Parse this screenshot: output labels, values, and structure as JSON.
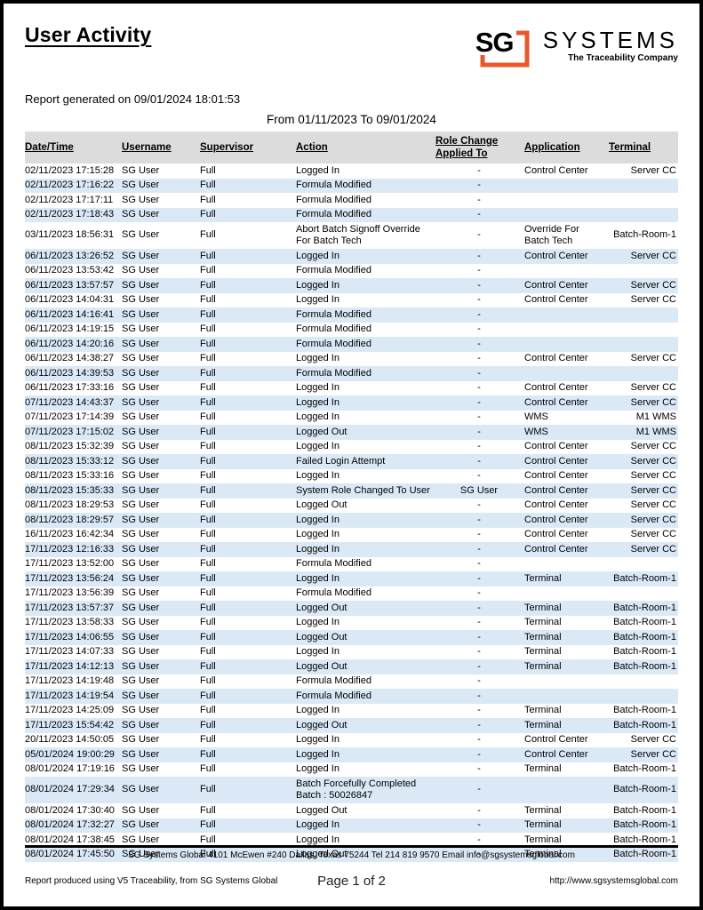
{
  "report": {
    "title": "User Activity",
    "generated_line": "Report generated on 09/01/2024 18:01:53",
    "date_range_line": "From 01/11/2023 To 09/01/2024",
    "page_indicator": "Page 1 of 2"
  },
  "logo": {
    "monogram": "SG",
    "name": "SYSTEMS",
    "tagline": "The Traceability Company",
    "accent_color": "#E9582B"
  },
  "colors": {
    "row_alt": "#dbe9f7",
    "header_bg": "#dcdcdc",
    "page_border": "#000000"
  },
  "table": {
    "headers": [
      "Date/Time",
      "Username",
      "Supervisor",
      "Action",
      "Role Change\nApplied To",
      "Application",
      "Terminal"
    ],
    "col_keys": [
      "datetime",
      "username",
      "supervisor",
      "action",
      "role-change-applied-to",
      "application",
      "terminal"
    ],
    "rows": [
      [
        "02/11/2023 17:15:28",
        "SG User",
        "Full",
        "Logged In",
        "-",
        "Control Center",
        "Server CC"
      ],
      [
        "02/11/2023 17:16:22",
        "SG User",
        "Full",
        "Formula Modified",
        "-",
        "",
        ""
      ],
      [
        "02/11/2023 17:17:11",
        "SG User",
        "Full",
        "Formula Modified",
        "-",
        "",
        ""
      ],
      [
        "02/11/2023 17:18:43",
        "SG User",
        "Full",
        "Formula Modified",
        "-",
        "",
        ""
      ],
      [
        "03/11/2023 18:56:31",
        "SG User",
        "Full",
        "Abort Batch Signoff Override\nFor Batch Tech",
        "-",
        "Override For\nBatch Tech",
        "Batch-Room-1"
      ],
      [
        "06/11/2023 13:26:52",
        "SG User",
        "Full",
        "Logged In",
        "-",
        "Control Center",
        "Server CC"
      ],
      [
        "06/11/2023 13:53:42",
        "SG User",
        "Full",
        "Formula Modified",
        "-",
        "",
        ""
      ],
      [
        "06/11/2023 13:57:57",
        "SG User",
        "Full",
        "Logged In",
        "-",
        "Control Center",
        "Server CC"
      ],
      [
        "06/11/2023 14:04:31",
        "SG User",
        "Full",
        "Logged In",
        "-",
        "Control Center",
        "Server CC"
      ],
      [
        "06/11/2023 14:16:41",
        "SG User",
        "Full",
        "Formula Modified",
        "-",
        "",
        ""
      ],
      [
        "06/11/2023 14:19:15",
        "SG User",
        "Full",
        "Formula Modified",
        "-",
        "",
        ""
      ],
      [
        "06/11/2023 14:20:16",
        "SG User",
        "Full",
        "Formula Modified",
        "-",
        "",
        ""
      ],
      [
        "06/11/2023 14:38:27",
        "SG User",
        "Full",
        "Logged In",
        "-",
        "Control Center",
        "Server CC"
      ],
      [
        "06/11/2023 14:39:53",
        "SG User",
        "Full",
        "Formula Modified",
        "-",
        "",
        ""
      ],
      [
        "06/11/2023 17:33:16",
        "SG User",
        "Full",
        "Logged In",
        "-",
        "Control Center",
        "Server CC"
      ],
      [
        "07/11/2023 14:43:37",
        "SG User",
        "Full",
        "Logged In",
        "-",
        "Control Center",
        "Server CC"
      ],
      [
        "07/11/2023 17:14:39",
        "SG User",
        "Full",
        "Logged In",
        "-",
        "WMS",
        "M1 WMS"
      ],
      [
        "07/11/2023 17:15:02",
        "SG User",
        "Full",
        "Logged Out",
        "-",
        "WMS",
        "M1 WMS"
      ],
      [
        "08/11/2023 15:32:39",
        "SG User",
        "Full",
        "Logged In",
        "-",
        "Control Center",
        "Server CC"
      ],
      [
        "08/11/2023 15:33:12",
        "SG User",
        "Full",
        "Failed Login Attempt",
        "-",
        "Control Center",
        "Server CC"
      ],
      [
        "08/11/2023 15:33:16",
        "SG User",
        "Full",
        "Logged In",
        "-",
        "Control Center",
        "Server CC"
      ],
      [
        "08/11/2023 15:35:33",
        "SG User",
        "Full",
        "System Role Changed To User",
        "SG User",
        "Control Center",
        "Server CC"
      ],
      [
        "08/11/2023 18:29:53",
        "SG User",
        "Full",
        "Logged Out",
        "-",
        "Control Center",
        "Server CC"
      ],
      [
        "08/11/2023 18:29:57",
        "SG User",
        "Full",
        "Logged In",
        "-",
        "Control Center",
        "Server CC"
      ],
      [
        "16/11/2023 16:42:34",
        "SG User",
        "Full",
        "Logged In",
        "-",
        "Control Center",
        "Server CC"
      ],
      [
        "17/11/2023 12:16:33",
        "SG User",
        "Full",
        "Logged In",
        "-",
        "Control Center",
        "Server CC"
      ],
      [
        "17/11/2023 13:52:00",
        "SG User",
        "Full",
        "Formula Modified",
        "-",
        "",
        ""
      ],
      [
        "17/11/2023 13:56:24",
        "SG User",
        "Full",
        "Logged In",
        "-",
        "Terminal",
        "Batch-Room-1"
      ],
      [
        "17/11/2023 13:56:39",
        "SG User",
        "Full",
        "Formula Modified",
        "-",
        "",
        ""
      ],
      [
        "17/11/2023 13:57:37",
        "SG User",
        "Full",
        "Logged Out",
        "-",
        "Terminal",
        "Batch-Room-1"
      ],
      [
        "17/11/2023 13:58:33",
        "SG User",
        "Full",
        "Logged In",
        "-",
        "Terminal",
        "Batch-Room-1"
      ],
      [
        "17/11/2023 14:06:55",
        "SG User",
        "Full",
        "Logged Out",
        "-",
        "Terminal",
        "Batch-Room-1"
      ],
      [
        "17/11/2023 14:07:33",
        "SG User",
        "Full",
        "Logged In",
        "-",
        "Terminal",
        "Batch-Room-1"
      ],
      [
        "17/11/2023 14:12:13",
        "SG User",
        "Full",
        "Logged Out",
        "-",
        "Terminal",
        "Batch-Room-1"
      ],
      [
        "17/11/2023 14:19:48",
        "SG User",
        "Full",
        "Formula Modified",
        "-",
        "",
        ""
      ],
      [
        "17/11/2023 14:19:54",
        "SG User",
        "Full",
        "Formula Modified",
        "-",
        "",
        ""
      ],
      [
        "17/11/2023 14:25:09",
        "SG User",
        "Full",
        "Logged In",
        "-",
        "Terminal",
        "Batch-Room-1"
      ],
      [
        "17/11/2023 15:54:42",
        "SG User",
        "Full",
        "Logged Out",
        "-",
        "Terminal",
        "Batch-Room-1"
      ],
      [
        "20/11/2023 14:50:05",
        "SG User",
        "Full",
        "Logged In",
        "-",
        "Control Center",
        "Server CC"
      ],
      [
        "05/01/2024 19:00:29",
        "SG User",
        "Full",
        "Logged In",
        "-",
        "Control Center",
        "Server CC"
      ],
      [
        "08/01/2024 17:19:16",
        "SG User",
        "Full",
        "Logged In",
        "-",
        "Terminal",
        "Batch-Room-1"
      ],
      [
        "08/01/2024 17:29:34",
        "SG User",
        "Full",
        "Batch Forcefully Completed\nBatch : 50026847",
        "-",
        "",
        "Batch-Room-1"
      ],
      [
        "08/01/2024 17:30:40",
        "SG User",
        "Full",
        "Logged Out",
        "-",
        "Terminal",
        "Batch-Room-1"
      ],
      [
        "08/01/2024 17:32:27",
        "SG User",
        "Full",
        "Logged In",
        "-",
        "Terminal",
        "Batch-Room-1"
      ],
      [
        "08/01/2024 17:38:45",
        "SG User",
        "Full",
        "Logged In",
        "-",
        "Terminal",
        "Batch-Room-1"
      ],
      [
        "08/01/2024 17:45:50",
        "SG User",
        "Full",
        "Logged Out",
        "-",
        "Terminal",
        "Batch-Room-1"
      ]
    ]
  },
  "footer": {
    "address": "SG Systems Global 4101 McEwen #240 Dallas, Texas 75244 Tel 214 819 9570 Email info@sgsystemsglobal.com",
    "produced_by": "Report produced using V5 Traceability, from SG Systems Global",
    "website": "http://www.sgsystemsglobal.com"
  }
}
